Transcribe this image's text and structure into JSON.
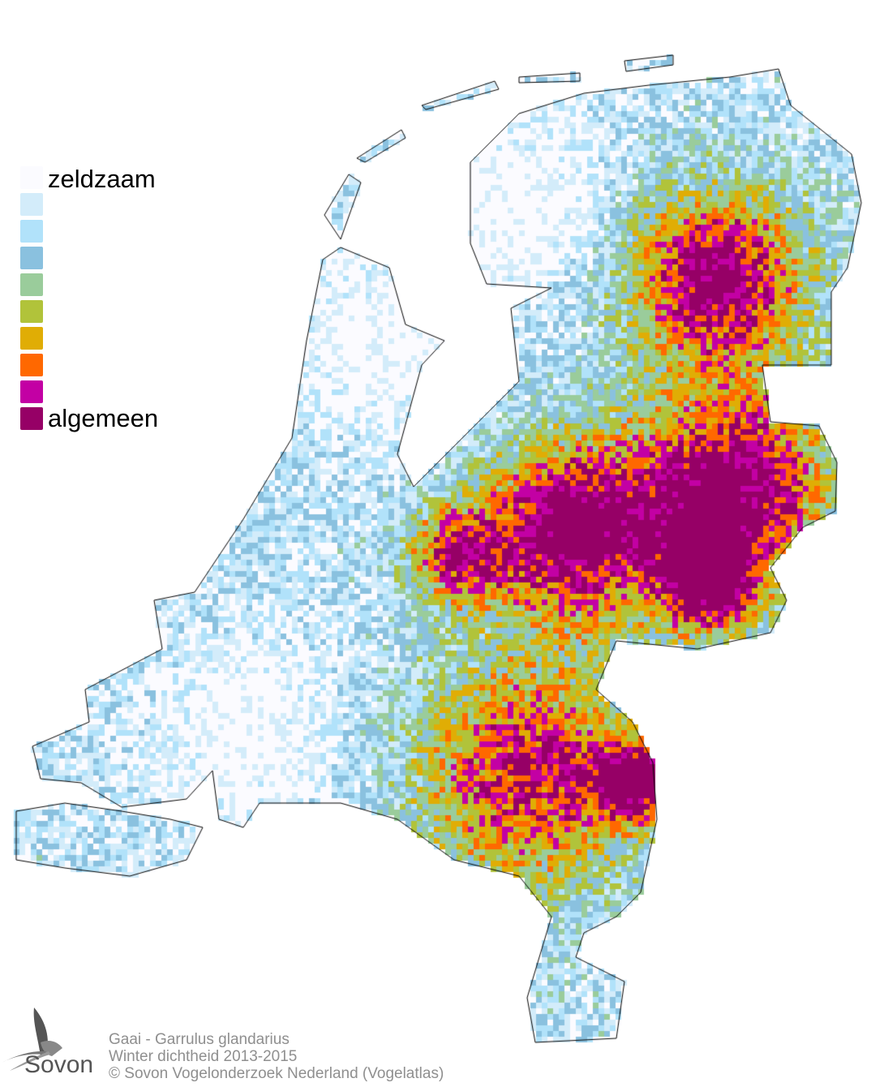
{
  "legend": {
    "low_label": "zeldzaam",
    "high_label": "algemeen",
    "colors": [
      "#fbfbff",
      "#d3ecfa",
      "#b1e2fa",
      "#8ac1df",
      "#9acc9b",
      "#b1c33a",
      "#e0ad05",
      "#ff6800",
      "#c300a4",
      "#960066"
    ]
  },
  "footer": {
    "line1": "Gaai - Garrulus glandarius",
    "line2": "Winter dichtheid 2013-2015",
    "line3": "© Sovon Vogelonderzoek Nederland (Vogelatlas)"
  },
  "logo": {
    "text": "Sovon"
  }
}
